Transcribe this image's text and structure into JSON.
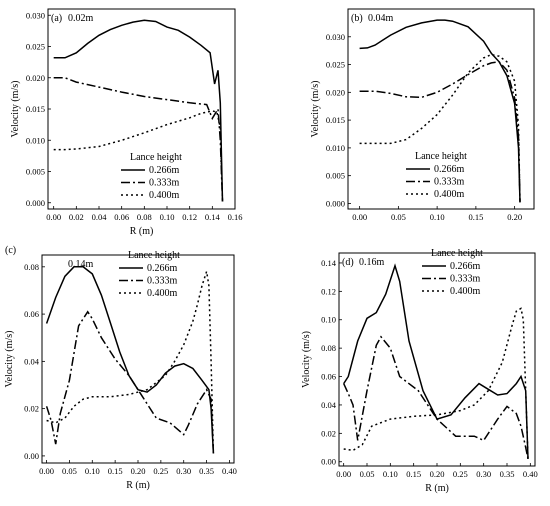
{
  "chart_data": [
    {
      "type": "line",
      "panel": "(a)",
      "label": "0.02m",
      "xlabel": "R (m)",
      "ylabel": "Velocity (m/s)",
      "xlim": [
        -0.005,
        0.16
      ],
      "ylim": [
        -0.001,
        0.031
      ],
      "xticks": [
        "0.00",
        "0.02",
        "0.04",
        "0.06",
        "0.08",
        "0.10",
        "0.12",
        "0.14",
        "0.16"
      ],
      "xtick_values": [
        0,
        0.02,
        0.04,
        0.06,
        0.08,
        0.1,
        0.12,
        0.14,
        0.16
      ],
      "yticks": [
        "0.000",
        "0.005",
        "0.010",
        "0.015",
        "0.020",
        "0.025",
        "0.030"
      ],
      "ytick_values": [
        0,
        0.005,
        0.01,
        0.015,
        0.02,
        0.025,
        0.03
      ],
      "legend_title": "Lance height",
      "legend_position": "bottom-right",
      "series": [
        {
          "name": "0.266m",
          "dash": "solid",
          "x": [
            0,
            0.01,
            0.02,
            0.03,
            0.04,
            0.05,
            0.06,
            0.07,
            0.08,
            0.09,
            0.1,
            0.11,
            0.12,
            0.13,
            0.138,
            0.142,
            0.145,
            0.147,
            0.148,
            0.149
          ],
          "y": [
            0.0232,
            0.0232,
            0.024,
            0.0255,
            0.0268,
            0.0277,
            0.0284,
            0.0289,
            0.0292,
            0.029,
            0.0281,
            0.0276,
            0.0265,
            0.0252,
            0.024,
            0.019,
            0.0212,
            0.016,
            0.008,
            0.0002
          ]
        },
        {
          "name": "0.333m",
          "dash": "dashdot",
          "x": [
            0,
            0.01,
            0.02,
            0.04,
            0.06,
            0.08,
            0.1,
            0.12,
            0.135,
            0.14,
            0.145,
            0.147,
            0.148,
            0.149
          ],
          "y": [
            0.02,
            0.02,
            0.0193,
            0.0185,
            0.0177,
            0.017,
            0.0165,
            0.016,
            0.0157,
            0.0135,
            0.015,
            0.01,
            0.005,
            0.0002
          ]
        },
        {
          "name": "0.400m",
          "dash": "dot",
          "x": [
            0,
            0.01,
            0.02,
            0.04,
            0.06,
            0.08,
            0.1,
            0.12,
            0.13,
            0.14,
            0.144,
            0.147,
            0.148,
            0.149
          ],
          "y": [
            0.0085,
            0.0085,
            0.0086,
            0.009,
            0.01,
            0.0112,
            0.0125,
            0.0136,
            0.0143,
            0.0147,
            0.0145,
            0.012,
            0.006,
            0.0002
          ]
        }
      ]
    },
    {
      "type": "line",
      "panel": "(b)",
      "label": "0.04m",
      "xlabel": "",
      "ylabel": "Velocity (m/s)",
      "xlim": [
        -0.015,
        0.225
      ],
      "ylim": [
        -0.001,
        0.035
      ],
      "xticks": [
        "0.00",
        "0.05",
        "0.10",
        "0.15",
        "0.20"
      ],
      "xtick_values": [
        0,
        0.05,
        0.1,
        0.15,
        0.2
      ],
      "yticks": [
        "0.000",
        "0.005",
        "0.010",
        "0.015",
        "0.020",
        "0.025",
        "0.030"
      ],
      "ytick_values": [
        0,
        0.005,
        0.01,
        0.015,
        0.02,
        0.025,
        0.03
      ],
      "legend_title": "Lance height",
      "legend_position": "bottom-right",
      "series": [
        {
          "name": "0.266m",
          "dash": "solid",
          "x": [
            0,
            0.01,
            0.02,
            0.04,
            0.06,
            0.08,
            0.1,
            0.11,
            0.12,
            0.14,
            0.16,
            0.17,
            0.18,
            0.19,
            0.2,
            0.205,
            0.207
          ],
          "y": [
            0.0279,
            0.028,
            0.0285,
            0.0303,
            0.0317,
            0.0325,
            0.033,
            0.033,
            0.0328,
            0.0318,
            0.0292,
            0.027,
            0.0255,
            0.023,
            0.018,
            0.01,
            0.0002
          ]
        },
        {
          "name": "0.333m",
          "dash": "dashdot",
          "x": [
            0,
            0.02,
            0.04,
            0.06,
            0.08,
            0.1,
            0.12,
            0.14,
            0.16,
            0.17,
            0.18,
            0.19,
            0.2,
            0.205,
            0.207
          ],
          "y": [
            0.0202,
            0.0202,
            0.0198,
            0.0192,
            0.0191,
            0.02,
            0.0215,
            0.0232,
            0.0248,
            0.0253,
            0.0255,
            0.024,
            0.019,
            0.012,
            0.0002
          ]
        },
        {
          "name": "0.400m",
          "dash": "dot",
          "x": [
            0,
            0.02,
            0.04,
            0.06,
            0.08,
            0.1,
            0.12,
            0.14,
            0.16,
            0.17,
            0.18,
            0.19,
            0.2,
            0.205,
            0.207
          ],
          "y": [
            0.0108,
            0.0108,
            0.0108,
            0.0115,
            0.0135,
            0.016,
            0.0195,
            0.0235,
            0.0262,
            0.0268,
            0.0265,
            0.0255,
            0.022,
            0.014,
            0.0002
          ]
        }
      ]
    },
    {
      "type": "line",
      "panel": "(c)",
      "label": "0.14m",
      "xlabel": "R (m)",
      "ylabel": "Velocity (m/s)",
      "xlim": [
        -0.01,
        0.41
      ],
      "ylim": [
        -0.003,
        0.085
      ],
      "xticks": [
        "0.00",
        "0.05",
        "0.10",
        "0.15",
        "0.20",
        "0.25",
        "0.30",
        "0.35",
        "0.40"
      ],
      "xtick_values": [
        0,
        0.05,
        0.1,
        0.15,
        0.2,
        0.25,
        0.3,
        0.35,
        0.4
      ],
      "yticks": [
        "0.00",
        "0.02",
        "0.04",
        "0.06",
        "0.08"
      ],
      "ytick_values": [
        0,
        0.02,
        0.04,
        0.06,
        0.08
      ],
      "legend_title": "Lance height",
      "legend_position": "top-right",
      "series": [
        {
          "name": "0.266m",
          "dash": "solid",
          "x": [
            0,
            0.02,
            0.04,
            0.06,
            0.08,
            0.1,
            0.12,
            0.14,
            0.16,
            0.18,
            0.2,
            0.22,
            0.24,
            0.26,
            0.28,
            0.3,
            0.32,
            0.34,
            0.355,
            0.36,
            0.365
          ],
          "y": [
            0.056,
            0.067,
            0.076,
            0.08,
            0.08,
            0.077,
            0.068,
            0.056,
            0.044,
            0.034,
            0.028,
            0.027,
            0.03,
            0.035,
            0.038,
            0.039,
            0.037,
            0.032,
            0.028,
            0.02,
            0.001
          ]
        },
        {
          "name": "0.333m",
          "dash": "dashdot",
          "x": [
            0,
            0.01,
            0.02,
            0.03,
            0.05,
            0.07,
            0.09,
            0.1,
            0.12,
            0.15,
            0.18,
            0.21,
            0.24,
            0.27,
            0.3,
            0.31,
            0.33,
            0.35,
            0.36,
            0.365
          ],
          "y": [
            0.021,
            0.015,
            0.005,
            0.018,
            0.032,
            0.055,
            0.061,
            0.058,
            0.05,
            0.041,
            0.034,
            0.025,
            0.016,
            0.014,
            0.009,
            0.013,
            0.022,
            0.028,
            0.024,
            0.001
          ]
        },
        {
          "name": "0.400m",
          "dash": "dot",
          "x": [
            0,
            0.02,
            0.04,
            0.06,
            0.08,
            0.1,
            0.14,
            0.18,
            0.22,
            0.26,
            0.28,
            0.3,
            0.32,
            0.33,
            0.34,
            0.35,
            0.355,
            0.36,
            0.365
          ],
          "y": [
            0.015,
            0.014,
            0.016,
            0.021,
            0.024,
            0.025,
            0.025,
            0.026,
            0.028,
            0.034,
            0.04,
            0.047,
            0.057,
            0.064,
            0.072,
            0.078,
            0.072,
            0.04,
            0.001
          ]
        }
      ]
    },
    {
      "type": "line",
      "panel": "(d)",
      "label": "0.16m",
      "xlabel": "R (m)",
      "ylabel": "Velocity (m/s)",
      "xlim": [
        -0.01,
        0.41
      ],
      "ylim": [
        -0.003,
        0.147
      ],
      "xticks": [
        "0.00",
        "0.05",
        "0.10",
        "0.15",
        "0.20",
        "0.25",
        "0.30",
        "0.35",
        "0.40"
      ],
      "xtick_values": [
        0,
        0.05,
        0.1,
        0.15,
        0.2,
        0.25,
        0.3,
        0.35,
        0.4
      ],
      "yticks": [
        "0.00",
        "0.02",
        "0.04",
        "0.06",
        "0.08",
        "0.10",
        "0.12",
        "0.14"
      ],
      "ytick_values": [
        0,
        0.02,
        0.04,
        0.06,
        0.08,
        0.1,
        0.12,
        0.14
      ],
      "legend_title": "Lance height",
      "legend_position": "top-right",
      "series": [
        {
          "name": "0.266m",
          "dash": "solid",
          "x": [
            0,
            0.01,
            0.03,
            0.05,
            0.07,
            0.09,
            0.11,
            0.12,
            0.14,
            0.17,
            0.2,
            0.23,
            0.26,
            0.29,
            0.31,
            0.33,
            0.35,
            0.37,
            0.38,
            0.39,
            0.395
          ],
          "y": [
            0.055,
            0.06,
            0.085,
            0.101,
            0.105,
            0.118,
            0.138,
            0.127,
            0.085,
            0.05,
            0.03,
            0.033,
            0.045,
            0.055,
            0.051,
            0.047,
            0.048,
            0.055,
            0.06,
            0.05,
            0.002
          ]
        },
        {
          "name": "0.333m",
          "dash": "dashdot",
          "x": [
            0,
            0.01,
            0.02,
            0.03,
            0.05,
            0.07,
            0.08,
            0.1,
            0.12,
            0.16,
            0.2,
            0.24,
            0.28,
            0.3,
            0.33,
            0.35,
            0.37,
            0.38,
            0.39,
            0.395
          ],
          "y": [
            0.055,
            0.048,
            0.04,
            0.015,
            0.05,
            0.082,
            0.088,
            0.08,
            0.06,
            0.05,
            0.03,
            0.018,
            0.018,
            0.015,
            0.03,
            0.039,
            0.034,
            0.025,
            0.01,
            0.002
          ]
        },
        {
          "name": "0.400m",
          "dash": "dot",
          "x": [
            0,
            0.02,
            0.04,
            0.06,
            0.1,
            0.15,
            0.2,
            0.25,
            0.28,
            0.31,
            0.34,
            0.36,
            0.37,
            0.38,
            0.385,
            0.39,
            0.395
          ],
          "y": [
            0.009,
            0.008,
            0.012,
            0.025,
            0.03,
            0.032,
            0.033,
            0.036,
            0.04,
            0.05,
            0.07,
            0.095,
            0.106,
            0.108,
            0.1,
            0.05,
            0.002
          ]
        }
      ]
    }
  ]
}
